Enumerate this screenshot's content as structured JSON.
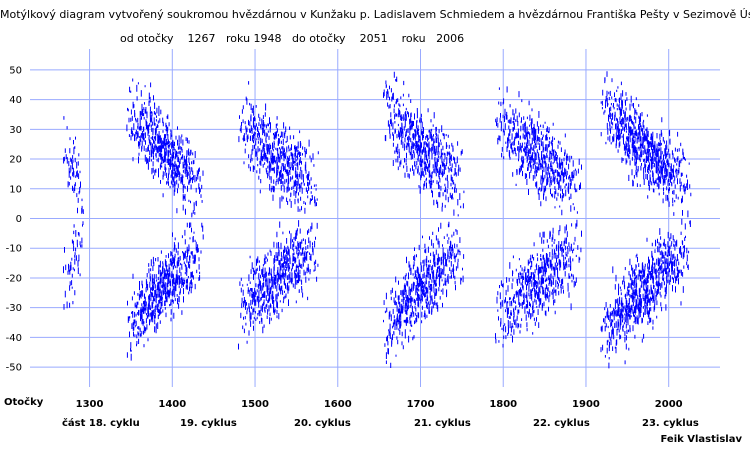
{
  "chart_data": {
    "type": "scatter",
    "title": "Motýlkový diagram vytvořený soukromou hvězdárnou v Kunžaku p. Ladislavem Schmiedem a hvězdárnou Františka Pešty v Sezimově Ústí",
    "subtitle": {
      "from_label": "od otočky",
      "from_rotation": "1267",
      "from_year_label": "roku",
      "from_year": "1948",
      "to_label": "do otočky",
      "to_rotation": "2051",
      "to_year_label": "roku",
      "to_year": "2006"
    },
    "xlabel": "Otočky",
    "ylabel": "",
    "xlim": [
      1228,
      2062
    ],
    "ylim": [
      -55,
      55
    ],
    "x_ticks": [
      "1300",
      "1400",
      "1500",
      "1600",
      "1700",
      "1800",
      "1900",
      "2000"
    ],
    "x_tick_values": [
      1300,
      1400,
      1500,
      1600,
      1700,
      1800,
      1900,
      2000
    ],
    "y_ticks": [
      "50",
      "40",
      "30",
      "20",
      "10",
      "0",
      "-10",
      "-20",
      "-30",
      "-40",
      "-50"
    ],
    "y_tick_values": [
      50,
      40,
      30,
      20,
      10,
      0,
      -10,
      -20,
      -30,
      -40,
      -50
    ],
    "grid": true,
    "marker_color": "#0000ff",
    "grid_color": "#99aaff",
    "cycles": [
      {
        "label": "část 18. cyklu",
        "x_start": 1267,
        "x_end": 1300,
        "lat_high": 25,
        "lat_low": 5,
        "intensity": 0.35
      },
      {
        "label": "19. cyklus",
        "x_start": 1345,
        "x_end": 1460,
        "lat_high": 38,
        "lat_low": 6,
        "intensity": 0.9
      },
      {
        "label": "20. cyklus",
        "x_start": 1480,
        "x_end": 1600,
        "lat_high": 33,
        "lat_low": 6,
        "intensity": 0.85
      },
      {
        "label": "21. cyklus",
        "x_start": 1655,
        "x_end": 1775,
        "lat_high": 38,
        "lat_low": 6,
        "intensity": 0.9
      },
      {
        "label": "22. cyklus",
        "x_start": 1790,
        "x_end": 1920,
        "lat_high": 35,
        "lat_low": 6,
        "intensity": 0.8
      },
      {
        "label": "23. cyklus",
        "x_start": 1918,
        "x_end": 2051,
        "lat_high": 40,
        "lat_low": 5,
        "intensity": 1.0
      }
    ]
  },
  "author": "Feik Vlastislav"
}
